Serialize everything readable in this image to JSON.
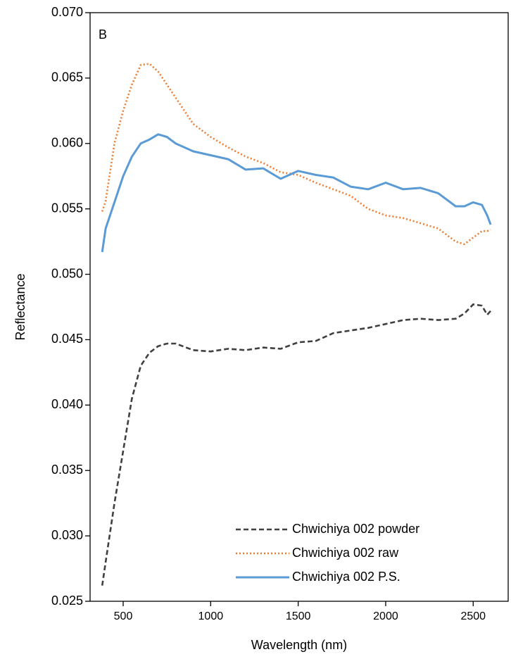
{
  "chart_data": {
    "type": "line",
    "annotation": "B",
    "xlabel": "Wavelength (nm)",
    "ylabel": "Reflectance",
    "x": [
      380,
      400,
      450,
      500,
      550,
      600,
      650,
      700,
      750,
      800,
      900,
      1000,
      1100,
      1200,
      1300,
      1400,
      1500,
      1600,
      1700,
      1800,
      1900,
      2000,
      2100,
      2200,
      2300,
      2400,
      2450,
      2500,
      2550,
      2580,
      2600
    ],
    "series": [
      {
        "name": "Chwichiya 002 powder",
        "color": "#404040",
        "dash": "dashed",
        "values": [
          0.0262,
          0.028,
          0.0325,
          0.0365,
          0.0405,
          0.043,
          0.044,
          0.0445,
          0.0447,
          0.0447,
          0.0442,
          0.0441,
          0.0443,
          0.0442,
          0.0444,
          0.0443,
          0.0448,
          0.0449,
          0.0455,
          0.0457,
          0.0459,
          0.0462,
          0.0465,
          0.0466,
          0.0465,
          0.0466,
          0.047,
          0.0477,
          0.0476,
          0.0469,
          0.0472
        ]
      },
      {
        "name": "Chwichiya 002 raw",
        "color": "#ED7D31",
        "dash": "dotted",
        "values": [
          0.0548,
          0.0556,
          0.06,
          0.0625,
          0.0645,
          0.066,
          0.0661,
          0.0655,
          0.0645,
          0.0635,
          0.0615,
          0.0605,
          0.0597,
          0.059,
          0.0585,
          0.0578,
          0.0576,
          0.057,
          0.0565,
          0.056,
          0.055,
          0.0545,
          0.0543,
          0.0539,
          0.0535,
          0.0525,
          0.0523,
          0.0528,
          0.0533,
          0.0533,
          0.0534
        ]
      },
      {
        "name": "Chwichiya 002 P.S.",
        "color": "#5B9BD5",
        "dash": "solid",
        "values": [
          0.0517,
          0.0535,
          0.0555,
          0.0575,
          0.059,
          0.06,
          0.0603,
          0.0607,
          0.0605,
          0.06,
          0.0594,
          0.0591,
          0.0588,
          0.058,
          0.0581,
          0.0573,
          0.0579,
          0.0576,
          0.0574,
          0.0567,
          0.0565,
          0.057,
          0.0565,
          0.0566,
          0.0562,
          0.0552,
          0.0552,
          0.0555,
          0.0553,
          0.0545,
          0.0538
        ]
      }
    ],
    "xlim": [
      311,
      2700
    ],
    "xticks": [
      500,
      1000,
      1500,
      2000,
      2500
    ],
    "ylim": [
      0.025,
      0.07
    ],
    "yticks": [
      0.025,
      {
        "value": 0.03,
        "label": "0.030"
      },
      0.035,
      {
        "value": 0.04,
        "label": "0.040"
      },
      0.045,
      {
        "value": 0.05,
        "label": "0.050"
      },
      0.055,
      {
        "value": 0.06,
        "label": "0.060"
      },
      0.065,
      {
        "value": 0.07,
        "label": "0.070"
      }
    ],
    "grid": false,
    "legend": "lower right"
  }
}
